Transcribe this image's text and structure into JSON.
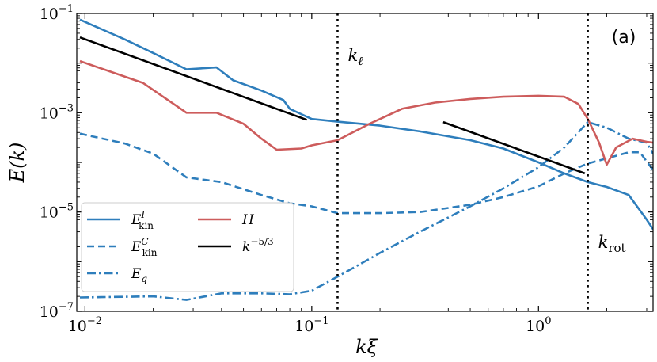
{
  "chart_data": {
    "type": "line",
    "title": "",
    "panel_label": "(a)",
    "xlabel": "kξ",
    "ylabel": "E(k)",
    "xscale": "log",
    "yscale": "log",
    "xlim": [
      0.0092,
      3.2
    ],
    "ylim": [
      1e-07,
      0.1
    ],
    "x_ticks": [
      {
        "value": 0.01,
        "label": "10",
        "exp": "−2"
      },
      {
        "value": 0.1,
        "label": "10",
        "exp": "−1"
      },
      {
        "value": 1,
        "label": "10",
        "exp": "0"
      }
    ],
    "y_ticks": [
      {
        "value": 1e-07,
        "label": "10",
        "exp": "−7"
      },
      {
        "value": 1e-05,
        "label": "10",
        "exp": "−5"
      },
      {
        "value": 0.001,
        "label": "10",
        "exp": "−3"
      },
      {
        "value": 0.1,
        "label": "10",
        "exp": "−1"
      }
    ],
    "vlines": [
      {
        "x": 0.13,
        "label": "k",
        "sub": "ℓ",
        "label_y": 0.011
      },
      {
        "x": 1.65,
        "label": "k",
        "sub": "rot",
        "label_y": 1.9e-06
      }
    ],
    "series": [
      {
        "name": "E_kin^I",
        "legend": "E",
        "legend_sub": "kin",
        "legend_sup": "I",
        "color": "#2e7ebc",
        "dash": "solid",
        "x": [
          0.0095,
          0.015,
          0.02,
          0.028,
          0.038,
          0.045,
          0.06,
          0.075,
          0.08,
          0.1,
          0.13,
          0.2,
          0.3,
          0.5,
          0.7,
          1.0,
          1.3,
          1.65,
          2.0,
          2.5,
          3.0,
          3.2
        ],
        "values": [
          0.075,
          0.03,
          0.016,
          0.0075,
          0.0082,
          0.0045,
          0.0028,
          0.0018,
          0.0012,
          0.00075,
          0.00066,
          0.00055,
          0.00042,
          0.00028,
          0.00019,
          0.0001,
          6e-05,
          4e-05,
          3.2e-05,
          2.2e-05,
          7e-06,
          4.5e-06
        ]
      },
      {
        "name": "E_kin^C",
        "legend": "E",
        "legend_sub": "kin",
        "legend_sup": "C",
        "color": "#2e7ebc",
        "dash": "dashed",
        "x": [
          0.0095,
          0.015,
          0.02,
          0.028,
          0.04,
          0.06,
          0.08,
          0.1,
          0.13,
          0.2,
          0.3,
          0.5,
          0.7,
          1.0,
          1.3,
          1.65,
          2.0,
          2.5,
          2.8,
          3.2
        ],
        "values": [
          0.00038,
          0.00024,
          0.00015,
          5e-05,
          4e-05,
          2.2e-05,
          1.5e-05,
          1.3e-05,
          9.5e-06,
          9.5e-06,
          1e-05,
          1.4e-05,
          2e-05,
          3.3e-05,
          6e-05,
          9.5e-05,
          0.00012,
          0.00016,
          0.00016,
          7e-05
        ]
      },
      {
        "name": "E_q",
        "legend": "E",
        "legend_sub": "q",
        "legend_sup": "",
        "color": "#2e7ebc",
        "dash": "dashdot",
        "x": [
          0.0095,
          0.02,
          0.028,
          0.04,
          0.06,
          0.08,
          0.1,
          0.13,
          0.2,
          0.3,
          0.5,
          0.7,
          1.0,
          1.3,
          1.65,
          2.0,
          2.5,
          3.0,
          3.2
        ],
        "values": [
          1.9e-07,
          2e-07,
          1.7e-07,
          2.3e-07,
          2.3e-07,
          2.2e-07,
          2.6e-07,
          5e-07,
          1.5e-06,
          4e-06,
          1.3e-05,
          3e-05,
          8e-05,
          0.0002,
          0.00065,
          0.0005,
          0.0003,
          0.00025,
          0.00015
        ]
      },
      {
        "name": "H",
        "legend": "H",
        "legend_sub": "",
        "legend_sup": "",
        "color": "#cd5c5c",
        "dash": "solid",
        "x": [
          0.0095,
          0.018,
          0.028,
          0.038,
          0.05,
          0.06,
          0.07,
          0.09,
          0.1,
          0.13,
          0.18,
          0.25,
          0.35,
          0.5,
          0.7,
          1.0,
          1.3,
          1.5,
          1.65,
          1.85,
          2.0,
          2.2,
          2.6,
          3.0,
          3.2
        ],
        "values": [
          0.011,
          0.004,
          0.001,
          0.001,
          0.0006,
          0.0003,
          0.00018,
          0.00019,
          0.00022,
          0.00028,
          0.0006,
          0.0012,
          0.0016,
          0.0019,
          0.0021,
          0.0022,
          0.0021,
          0.0015,
          0.00075,
          0.00025,
          9e-05,
          0.0002,
          0.0003,
          0.00026,
          0.00025
        ]
      },
      {
        "name": "k^-5/3 (left)",
        "legend": "k",
        "legend_sub": "",
        "legend_sup": "−5/3",
        "color": "#000000",
        "dash": "solid",
        "x": [
          0.0095,
          0.095
        ],
        "values": [
          0.033,
          0.00072
        ]
      },
      {
        "name": "k^-5/3 (right)",
        "legend": "",
        "legend_sub": "",
        "legend_sup": "",
        "color": "#000000",
        "dash": "solid",
        "x": [
          0.38,
          1.6
        ],
        "values": [
          0.00065,
          6e-05
        ]
      }
    ],
    "legend_order": [
      0,
      3,
      1,
      4,
      2
    ],
    "legend_position": "lower-left"
  }
}
